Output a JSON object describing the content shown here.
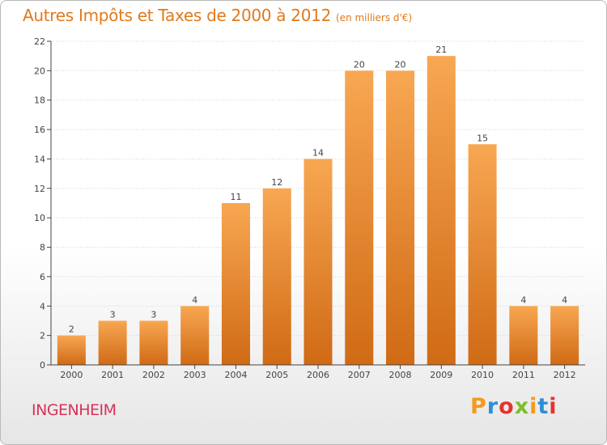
{
  "header": {
    "title": "Autres Impôts et Taxes de 2000 à 2012",
    "unit": "(en milliers d'€)"
  },
  "footer": {
    "commune": "INGENHEIM",
    "logo": "Proxiti",
    "logo_colors": [
      "#f39a1e",
      "#2d8fd6",
      "#e3342f",
      "#7cbf2c",
      "#f39a1e",
      "#2d8fd6",
      "#e3342f"
    ]
  },
  "colors": {
    "title": "#e07a1c",
    "commune": "#d6335a",
    "bar_top": "#f8a752",
    "bar_bottom": "#d06a15",
    "axis": "#444444",
    "grid": "#d5d5d5"
  },
  "chart_data": {
    "type": "bar",
    "categories": [
      "2000",
      "2001",
      "2002",
      "2003",
      "2004",
      "2005",
      "2006",
      "2007",
      "2008",
      "2009",
      "2010",
      "2011",
      "2012"
    ],
    "values": [
      2,
      3,
      3,
      4,
      11,
      12,
      14,
      20,
      20,
      21,
      15,
      4,
      4
    ],
    "title": "Autres Impôts et Taxes de 2000 à 2012",
    "xlabel": "",
    "ylabel": "",
    "ylim": [
      0,
      22
    ],
    "yticks": [
      0,
      2,
      4,
      6,
      8,
      10,
      12,
      14,
      16,
      18,
      20,
      22
    ],
    "grid": true,
    "legend": "none"
  }
}
